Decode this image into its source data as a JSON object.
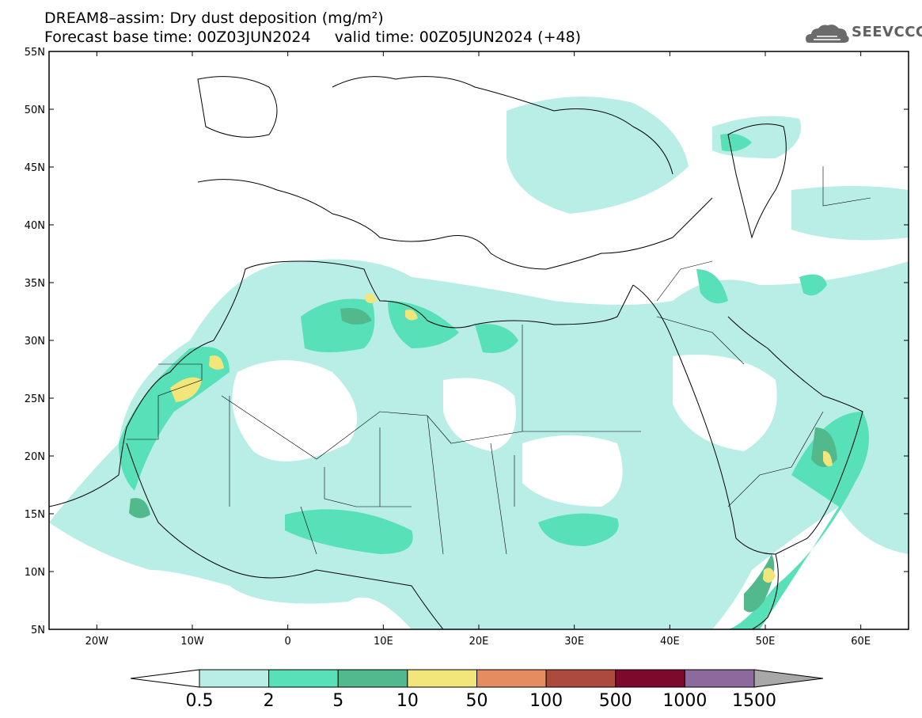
{
  "header": {
    "title_line1": "DREAM8–assim: Dry dust deposition (mg/m²)",
    "title_line2": "Forecast base time: 00Z03JUN2024     valid time: 00Z05JUN2024 (+48)"
  },
  "logo": {
    "text": "SEEVCCC",
    "icon": "cloud-logo-icon"
  },
  "map": {
    "projection": "lat-lon",
    "lon_range": [
      -25,
      65
    ],
    "lat_range": [
      5,
      55
    ],
    "lat_ticks": [
      {
        "value": 55,
        "label": "55N"
      },
      {
        "value": 50,
        "label": "50N"
      },
      {
        "value": 45,
        "label": "45N"
      },
      {
        "value": 40,
        "label": "40N"
      },
      {
        "value": 35,
        "label": "35N"
      },
      {
        "value": 30,
        "label": "30N"
      },
      {
        "value": 25,
        "label": "25N"
      },
      {
        "value": 20,
        "label": "20N"
      },
      {
        "value": 15,
        "label": "15N"
      },
      {
        "value": 10,
        "label": "10N"
      },
      {
        "value": 5,
        "label": "5N"
      }
    ],
    "lon_ticks": [
      {
        "value": -20,
        "label": "20W"
      },
      {
        "value": -10,
        "label": "10W"
      },
      {
        "value": 0,
        "label": "0"
      },
      {
        "value": 10,
        "label": "10E"
      },
      {
        "value": 20,
        "label": "20E"
      },
      {
        "value": 30,
        "label": "30E"
      },
      {
        "value": 40,
        "label": "40E"
      },
      {
        "value": 50,
        "label": "50E"
      },
      {
        "value": 60,
        "label": "60E"
      }
    ]
  },
  "colorbar": {
    "levels": [
      "0.5",
      "2",
      "5",
      "10",
      "50",
      "100",
      "500",
      "1000",
      "1500"
    ],
    "colors": [
      "#ffffff",
      "#b8eee6",
      "#58e0b8",
      "#52b98c",
      "#f2e57a",
      "#e58d60",
      "#ad4a3e",
      "#7d0a2c",
      "#8c6a9e",
      "#a8a8a8"
    ]
  }
}
